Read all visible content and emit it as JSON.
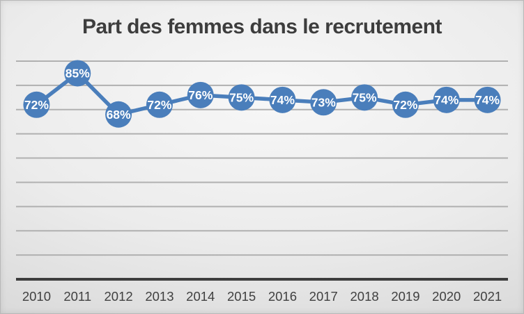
{
  "chart_data": {
    "type": "line",
    "title": "Part des femmes dans le recrutement",
    "categories": [
      "2010",
      "2011",
      "2012",
      "2013",
      "2014",
      "2015",
      "2016",
      "2017",
      "2018",
      "2019",
      "2020",
      "2021"
    ],
    "values": [
      72,
      85,
      68,
      72,
      76,
      75,
      74,
      73,
      75,
      72,
      74,
      74
    ],
    "labels": [
      "72%",
      "85%",
      "68%",
      "72%",
      "76%",
      "75%",
      "74%",
      "73%",
      "75%",
      "72%",
      "74%",
      "74%"
    ],
    "xlabel": "",
    "ylabel": "",
    "ylim": [
      0,
      90
    ],
    "grid": true,
    "grid_step": 10,
    "legend": "none",
    "marker": "circle",
    "colors": {
      "line": "#4a7ebb",
      "marker_fill": "#4a7ebb",
      "data_label_text": "#ffffff",
      "gridline": "#b0b0b0",
      "axis_line": "#3d3d3d",
      "tick_text": "#404040",
      "title_text": "#3d3d3d"
    }
  }
}
